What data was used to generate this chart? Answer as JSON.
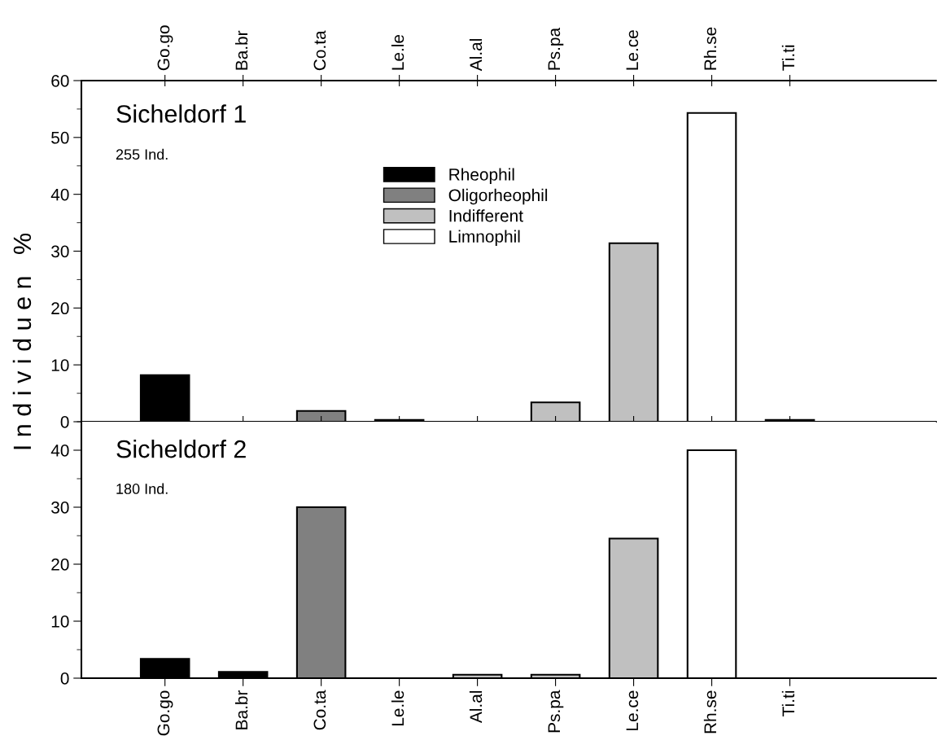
{
  "chart_data": [
    {
      "type": "bar",
      "title": "Sicheldorf 1",
      "ylabel": "I n d i v i d u e n   %",
      "annotations": [
        "255 Ind."
      ],
      "categories": [
        "Go.go",
        "Ba.br",
        "Co.ta",
        "Le.le",
        "Al.al",
        "Ps.pa",
        "Le.ce",
        "Rh.se",
        "Ti.ti"
      ],
      "series": [
        {
          "name": "Rheophil",
          "color": "#000000",
          "values": [
            8.2,
            null,
            null,
            null,
            null,
            null,
            null,
            null,
            null
          ]
        },
        {
          "name": "Oligorheophil",
          "color": "#808080",
          "values": [
            null,
            null,
            1.9,
            0.3,
            null,
            null,
            null,
            null,
            null
          ]
        },
        {
          "name": "Indifferent",
          "color": "#c0c0c0",
          "values": [
            null,
            null,
            null,
            null,
            null,
            3.4,
            31.4,
            null,
            null
          ]
        },
        {
          "name": "Limnophil",
          "color": "#ffffff",
          "values": [
            null,
            null,
            null,
            null,
            null,
            null,
            null,
            54.3,
            0.3
          ]
        }
      ],
      "ylim": [
        0,
        60
      ],
      "yticks": [
        0,
        10,
        20,
        30,
        40,
        50,
        60
      ],
      "legend": "top"
    },
    {
      "type": "bar",
      "title": "Sicheldorf 2",
      "annotations": [
        "180 Ind."
      ],
      "categories": [
        "Go.go",
        "Ba.br",
        "Co.ta",
        "Le.le",
        "Al.al",
        "Ps.pa",
        "Le.ce",
        "Rh.se",
        "Ti.ti"
      ],
      "series": [
        {
          "color": "#000000",
          "values": [
            3.4,
            1.1,
            null,
            null,
            null,
            null,
            null,
            null,
            null
          ]
        },
        {
          "color": "#808080",
          "values": [
            null,
            null,
            30.0,
            null,
            null,
            null,
            null,
            null,
            null
          ]
        },
        {
          "color": "#c0c0c0",
          "values": [
            null,
            null,
            null,
            null,
            0.6,
            0.6,
            24.5,
            null,
            null
          ]
        },
        {
          "color": "#ffffff",
          "values": [
            null,
            null,
            null,
            null,
            null,
            null,
            null,
            40.0,
            null
          ]
        }
      ],
      "ylim": [
        0,
        45
      ],
      "yticks": [
        0,
        10,
        20,
        30,
        40
      ]
    }
  ]
}
